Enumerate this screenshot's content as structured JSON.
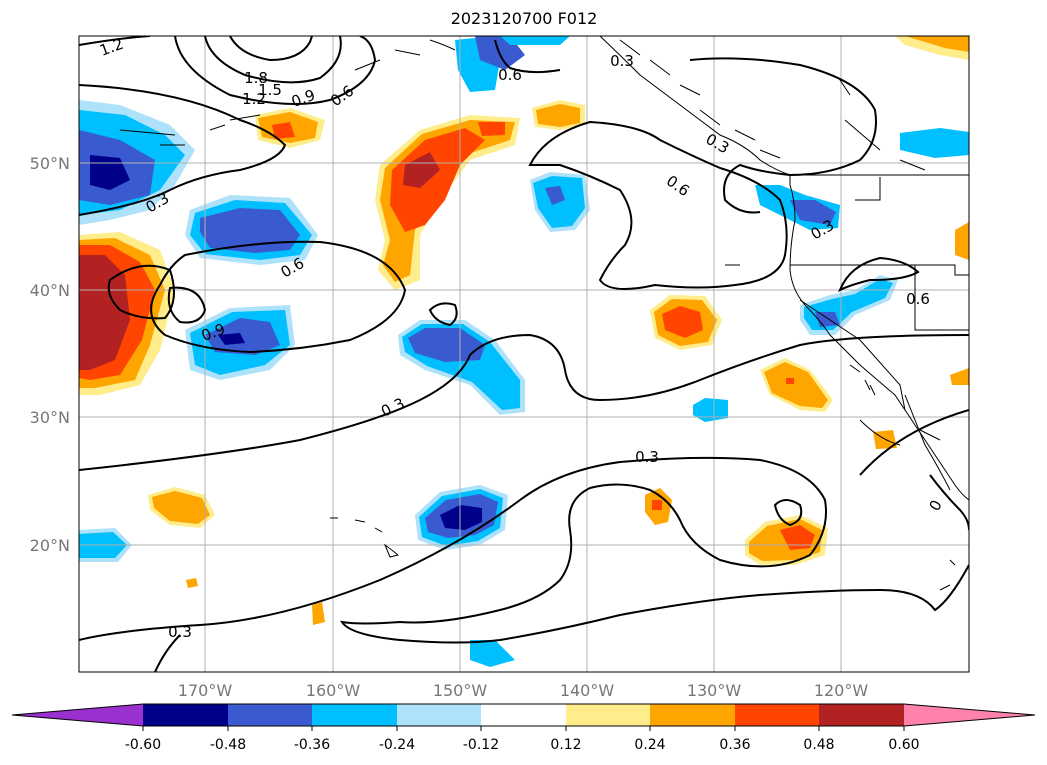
{
  "title": "2023120700 F012",
  "map": {
    "latitude_labels": [
      "50°N",
      "40°N",
      "30°N",
      "20°N"
    ],
    "longitude_labels": [
      "170°W",
      "160°W",
      "150°W",
      "140°W",
      "130°W",
      "120°W"
    ],
    "contour_labels": [
      "1.2",
      "1.8",
      "1.5",
      "1.2",
      "0.9",
      "0.6",
      "0.6",
      "0.3",
      "0.3",
      "0.6",
      "0.3",
      "0.6",
      "0.9",
      "0.3",
      "0.6",
      "0.3",
      "0.3",
      "0.3",
      "0"
    ],
    "grid": true
  },
  "colorbar": {
    "ticks": [
      "-0.60",
      "-0.48",
      "-0.36",
      "-0.24",
      "-0.12",
      "0.12",
      "0.24",
      "0.36",
      "0.48",
      "0.60"
    ],
    "colors": [
      "#9b30d0",
      "#00008b",
      "#3a5bd0",
      "#00bfff",
      "#aee2fa",
      "#ffffff",
      "#ffec8b",
      "#ffa500",
      "#ff4500",
      "#b22222",
      "#ff82ab"
    ]
  }
}
